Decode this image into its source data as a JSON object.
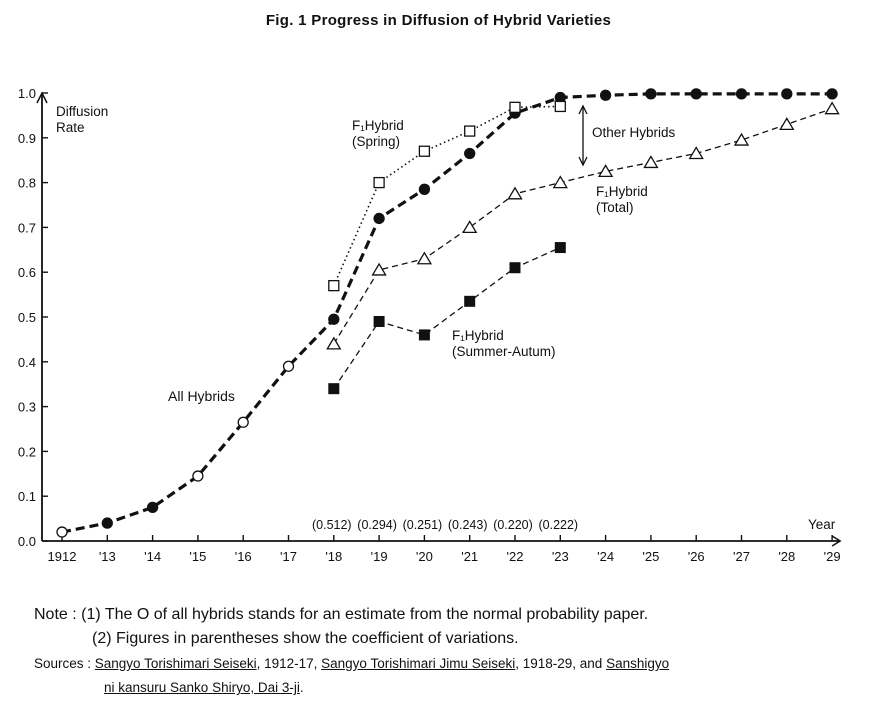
{
  "title": "Fig. 1 Progress in Diffusion of Hybrid Varieties",
  "chart_data": {
    "type": "line",
    "title": "Fig. 1 Progress in Diffusion of Hybrid Varieties",
    "xlabel": "Year",
    "ylabel": "Diffusion Rate",
    "x_ticks": [
      "1912",
      "'13",
      "'14",
      "'15",
      "'16",
      "'17",
      "'18",
      "'19",
      "'20",
      "'21",
      "'22",
      "'23",
      "'24",
      "'25",
      "'26",
      "'27",
      "'28",
      "'29"
    ],
    "x_range": [
      1912,
      1929
    ],
    "ylim": [
      0,
      1.0
    ],
    "y_ticks": [
      "0.0",
      "0.1",
      "0.2",
      "0.3",
      "0.4",
      "0.5",
      "0.6",
      "0.7",
      "0.8",
      "0.9",
      "1.0"
    ],
    "grid": false,
    "series": [
      {
        "name": "All Hybrids",
        "marker": "circle",
        "line": "bold-dashed",
        "points": [
          {
            "x": 1912,
            "y": 0.02,
            "open": true
          },
          {
            "x": 1913,
            "y": 0.04,
            "open": false
          },
          {
            "x": 1914,
            "y": 0.075,
            "open": false
          },
          {
            "x": 1915,
            "y": 0.145,
            "open": true
          },
          {
            "x": 1916,
            "y": 0.265,
            "open": true
          },
          {
            "x": 1917,
            "y": 0.39,
            "open": true
          },
          {
            "x": 1918,
            "y": 0.495,
            "open": false
          },
          {
            "x": 1919,
            "y": 0.72,
            "open": false
          },
          {
            "x": 1920,
            "y": 0.785,
            "open": false
          },
          {
            "x": 1921,
            "y": 0.865,
            "open": false
          },
          {
            "x": 1922,
            "y": 0.955,
            "open": false
          },
          {
            "x": 1923,
            "y": 0.99,
            "open": false
          },
          {
            "x": 1924,
            "y": 0.995,
            "open": false
          },
          {
            "x": 1925,
            "y": 0.998,
            "open": false
          },
          {
            "x": 1926,
            "y": 0.998,
            "open": false
          },
          {
            "x": 1927,
            "y": 0.998,
            "open": false
          },
          {
            "x": 1928,
            "y": 0.998,
            "open": false
          },
          {
            "x": 1929,
            "y": 0.998,
            "open": false
          }
        ]
      },
      {
        "name": "F1Hybrid (Spring)",
        "marker": "open-square",
        "line": "dotted",
        "points": [
          {
            "x": 1918,
            "y": 0.57
          },
          {
            "x": 1919,
            "y": 0.8
          },
          {
            "x": 1920,
            "y": 0.87
          },
          {
            "x": 1921,
            "y": 0.915
          },
          {
            "x": 1922,
            "y": 0.968
          },
          {
            "x": 1923,
            "y": 0.97
          }
        ]
      },
      {
        "name": "F1Hybrid (Total)",
        "marker": "open-triangle",
        "line": "dashed",
        "points": [
          {
            "x": 1918,
            "y": 0.44
          },
          {
            "x": 1919,
            "y": 0.605
          },
          {
            "x": 1920,
            "y": 0.63
          },
          {
            "x": 1921,
            "y": 0.7
          },
          {
            "x": 1922,
            "y": 0.775
          },
          {
            "x": 1923,
            "y": 0.8
          },
          {
            "x": 1924,
            "y": 0.825
          },
          {
            "x": 1925,
            "y": 0.845
          },
          {
            "x": 1926,
            "y": 0.865
          },
          {
            "x": 1927,
            "y": 0.895
          },
          {
            "x": 1928,
            "y": 0.93
          },
          {
            "x": 1929,
            "y": 0.965
          }
        ]
      },
      {
        "name": "F1Hybrid (Summer-Autum)",
        "marker": "filled-square",
        "line": "dashed",
        "points": [
          {
            "x": 1918,
            "y": 0.34
          },
          {
            "x": 1919,
            "y": 0.49
          },
          {
            "x": 1920,
            "y": 0.46
          },
          {
            "x": 1921,
            "y": 0.535
          },
          {
            "x": 1922,
            "y": 0.61
          },
          {
            "x": 1923,
            "y": 0.655
          }
        ]
      }
    ],
    "cv_labels": [
      {
        "x": 1918,
        "text": "(0.512)"
      },
      {
        "x": 1919,
        "text": "(0.294)"
      },
      {
        "x": 1920,
        "text": "(0.251)"
      },
      {
        "x": 1921,
        "text": "(0.243)"
      },
      {
        "x": 1922,
        "text": "(0.220)"
      },
      {
        "x": 1923,
        "text": "(0.222)"
      }
    ],
    "annotations": {
      "all_hybrids": "All Hybrids",
      "spring_1": "F₁Hybrid",
      "spring_2": "(Spring)",
      "total_1": "F₁Hybrid",
      "total_2": "(Total)",
      "summer_1": "F₁Hybrid",
      "summer_2": "(Summer-Autum)",
      "other_hybrids": "Other Hybrids",
      "ylabel_1": "Diffusion",
      "ylabel_2": "Rate",
      "xlabel": "Year"
    }
  },
  "notes": {
    "line1": "Note : (1)  The O of all hybrids stands for an estimate from the normal probability paper.",
    "line2": "(2)  Figures in parentheses show the coefficient of variations.",
    "sources_prefix": "Sources : ",
    "src1": "Sangyo Torishimari Seiseki",
    "sep1": ", 1912-17, ",
    "src2": "Sangyo Torishimari Jimu Seiseki",
    "sep2": ", 1918-29, and ",
    "src3a": "Sanshigyo",
    "src3b": "ni kansuru Sanko Shiryo, Dai 3-ji",
    "end": "."
  }
}
